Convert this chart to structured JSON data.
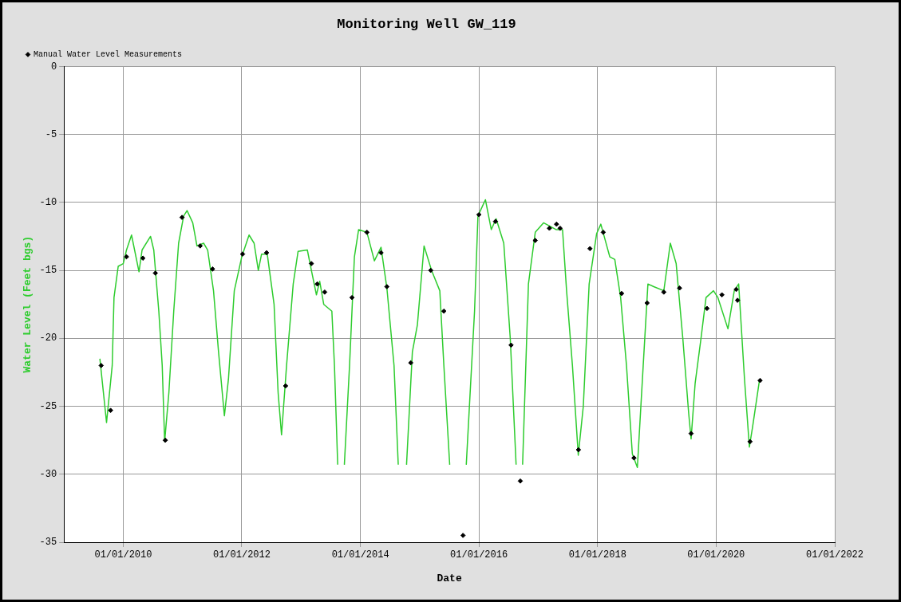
{
  "chart_data": {
    "type": "line",
    "title": "Monitoring Well GW_119",
    "xlabel": "Date",
    "ylabel": "Water Level (Feet bgs)",
    "ylim": [
      -35,
      0
    ],
    "yticks": [
      -35,
      -30,
      -25,
      -20,
      -15,
      -10,
      -5,
      0
    ],
    "xlim": [
      "2009-01-01",
      "2022-01-01"
    ],
    "xticks": [
      {
        "value": "2010-01-01",
        "label": "01/01/2010"
      },
      {
        "value": "2012-01-01",
        "label": "01/01/2012"
      },
      {
        "value": "2014-01-01",
        "label": "01/01/2014"
      },
      {
        "value": "2016-01-01",
        "label": "01/01/2016"
      },
      {
        "value": "2018-01-01",
        "label": "01/01/2018"
      },
      {
        "value": "2020-01-01",
        "label": "01/01/2020"
      },
      {
        "value": "2022-01-01",
        "label": "01/01/2022"
      }
    ],
    "grid": true,
    "legend": "top left",
    "series": [
      {
        "color": "#2ecc2e",
        "marker": "none",
        "line_style": "solid",
        "x": [
          "2009-08-10",
          "2009-09-20",
          "2009-10-25",
          "2009-11-05",
          "2009-12-01",
          "2010-01-01",
          "2010-01-21",
          "2010-02-21",
          "2010-04-08",
          "2010-04-27",
          "2010-06-18",
          "2010-07-08",
          "2010-08-08",
          "2010-08-29",
          "2010-09-13",
          "2010-10-09",
          "2010-11-08",
          "2010-12-08",
          "2011-01-08",
          "2011-01-29",
          "2011-03-05",
          "2011-03-31",
          "2011-05-11",
          "2011-06-05",
          "2011-07-11",
          "2011-08-11",
          "2011-09-16",
          "2011-10-11",
          "2011-11-16",
          "2012-01-01",
          "2012-02-15",
          "2012-03-17",
          "2012-04-12",
          "2012-05-02",
          "2012-06-06",
          "2012-07-18",
          "2012-08-12",
          "2012-09-02",
          "2012-10-03",
          "2012-11-13",
          "2012-12-13",
          "2013-02-08",
          "2013-03-05",
          "2013-04-05",
          "2013-04-25",
          "2013-05-20",
          "2013-07-09",
          "2013-07-25",
          "2013-08-14",
          "2013-09-04",
          "2013-09-24",
          "2013-10-26",
          "2013-11-25",
          "2013-12-21",
          "2014-02-10",
          "2014-03-28",
          "2014-05-08",
          "2014-06-13",
          "2014-07-27",
          "2014-08-22",
          "2014-09-15",
          "2014-10-12",
          "2014-11-17",
          "2014-12-18",
          "2015-01-28",
          "2015-03-15",
          "2015-05-05",
          "2015-05-30",
          "2015-07-05",
          "2015-08-25",
          "2015-10-15",
          "2015-12-05",
          "2015-12-26",
          "2016-02-10",
          "2016-03-17",
          "2016-04-16",
          "2016-06-02",
          "2016-07-12",
          "2016-08-17",
          "2016-09-05",
          "2016-09-26",
          "2016-11-01",
          "2016-12-13",
          "2017-02-02",
          "2017-04-20",
          "2017-05-30",
          "2017-06-24",
          "2017-07-30",
          "2017-09-04",
          "2017-10-05",
          "2017-11-10",
          "2017-12-26",
          "2018-01-21",
          "2018-03-17",
          "2018-04-17",
          "2018-05-23",
          "2018-06-28",
          "2018-08-03",
          "2018-09-03",
          "2018-10-09",
          "2018-11-07",
          "2018-12-13",
          "2019-02-13",
          "2019-03-25",
          "2019-04-30",
          "2019-06-10",
          "2019-07-16",
          "2019-07-31",
          "2019-08-25",
          "2019-09-30",
          "2019-10-31",
          "2019-12-16",
          "2020-01-12",
          "2020-03-14",
          "2020-04-22",
          "2020-05-19",
          "2020-06-24",
          "2020-07-24",
          "2020-08-13",
          "2020-09-24"
        ],
        "values": [
          -21.5,
          -26.2,
          -22,
          -17,
          -14.7,
          -14.5,
          -13.5,
          -12.4,
          -15.1,
          -13.5,
          -12.5,
          -13.5,
          -18,
          -22,
          -27.6,
          -24,
          -18,
          -13,
          -11,
          -10.6,
          -11.5,
          -13.2,
          -13,
          -13.5,
          -16.5,
          -21,
          -25.7,
          -23,
          -16.5,
          -14,
          -12.4,
          -13,
          -15,
          -13.8,
          -13.8,
          -17.5,
          -24,
          -27.1,
          -22,
          -16,
          -13.6,
          -13.5,
          -15,
          -16.8,
          -15.8,
          -17.5,
          -18,
          -22,
          -29.3,
          null,
          -29.3,
          -22,
          -14,
          -12,
          -12.2,
          -14.3,
          -13.3,
          -16.3,
          -22,
          -29.3,
          null,
          -29.3,
          -21,
          -19,
          -13.2,
          -15,
          -16.5,
          -22,
          -29.3,
          null,
          -29.3,
          -18,
          -11,
          -9.8,
          -12,
          -11.2,
          -13,
          -20,
          -29.3,
          null,
          -29.3,
          -16,
          -12.2,
          -11.5,
          -12,
          -12,
          -16.5,
          -22,
          -28.6,
          -25,
          -16,
          -12.3,
          -11.6,
          -14,
          -14.2,
          -17,
          -22,
          -28.5,
          -29.5,
          -22,
          -16,
          -16.2,
          -16.5,
          -13,
          -14.5,
          -20,
          -25.5,
          -27.4,
          -23.3,
          -20,
          -17,
          -16.5,
          -17,
          -19.3,
          -16.5,
          -16,
          -23,
          -28,
          -26.5,
          -23.1
        ]
      },
      {
        "type": "scatter",
        "name": "Manual Water Level Measurements",
        "color": "#000000",
        "marker": "diamond",
        "x": [
          "2009-08-18",
          "2009-10-15",
          "2010-01-21",
          "2010-05-02",
          "2010-07-18",
          "2010-09-17",
          "2010-12-29",
          "2011-04-20",
          "2011-07-05",
          "2012-01-06",
          "2012-06-02",
          "2012-09-27",
          "2013-03-05",
          "2013-04-10",
          "2013-05-26",
          "2013-11-10",
          "2014-02-10",
          "2014-05-08",
          "2014-06-13",
          "2014-11-07",
          "2015-03-10",
          "2015-05-30",
          "2015-09-25",
          "2016-01-01",
          "2016-04-12",
          "2016-07-17",
          "2016-09-12",
          "2016-12-13",
          "2017-03-10",
          "2017-04-23",
          "2017-05-15",
          "2017-09-05",
          "2017-11-15",
          "2018-02-05",
          "2018-05-29",
          "2018-08-13",
          "2018-11-02",
          "2019-02-13",
          "2019-05-21",
          "2019-07-31",
          "2019-11-06",
          "2020-02-06",
          "2020-05-04",
          "2020-05-12",
          "2020-07-28",
          "2020-09-28"
        ],
        "values": [
          -22,
          -25.3,
          -14,
          -14.1,
          -15.2,
          -27.5,
          -11.1,
          -13.2,
          -14.9,
          -13.8,
          -13.7,
          -23.5,
          -14.5,
          -16,
          -16.6,
          -17,
          -12.2,
          -13.7,
          -16.2,
          -21.8,
          -15,
          -18,
          -34.5,
          -10.9,
          -11.4,
          -20.5,
          -30.5,
          -12.8,
          -11.9,
          -11.6,
          -11.9,
          -28.2,
          -13.4,
          -12.2,
          -16.7,
          -28.8,
          -17.4,
          -16.6,
          -16.3,
          -27,
          -17.8,
          -16.8,
          -16.4,
          -17.2,
          -27.6,
          -23.1
        ]
      }
    ]
  }
}
